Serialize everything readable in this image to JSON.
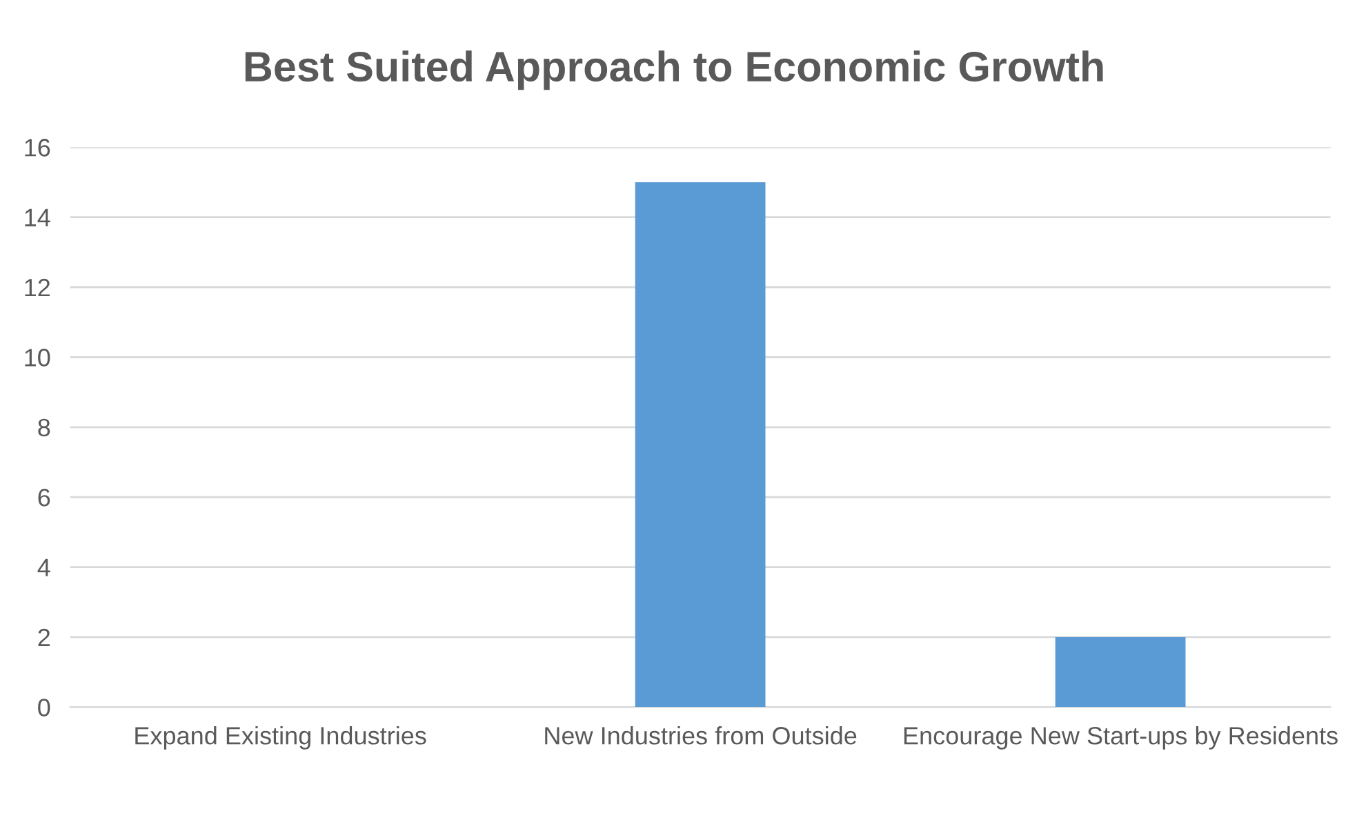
{
  "chart_data": {
    "type": "bar",
    "title": "Best Suited Approach to Economic Growth",
    "categories": [
      "Expand Existing Industries",
      "New Industries from Outside",
      "Encourage New Start-ups by Residents"
    ],
    "values": [
      0,
      15,
      2
    ],
    "color": "#5b9bd5",
    "ylim": [
      0,
      16
    ],
    "yticks": [
      0,
      2,
      4,
      6,
      8,
      10,
      12,
      14,
      16
    ],
    "grid": "y",
    "legend": false
  }
}
